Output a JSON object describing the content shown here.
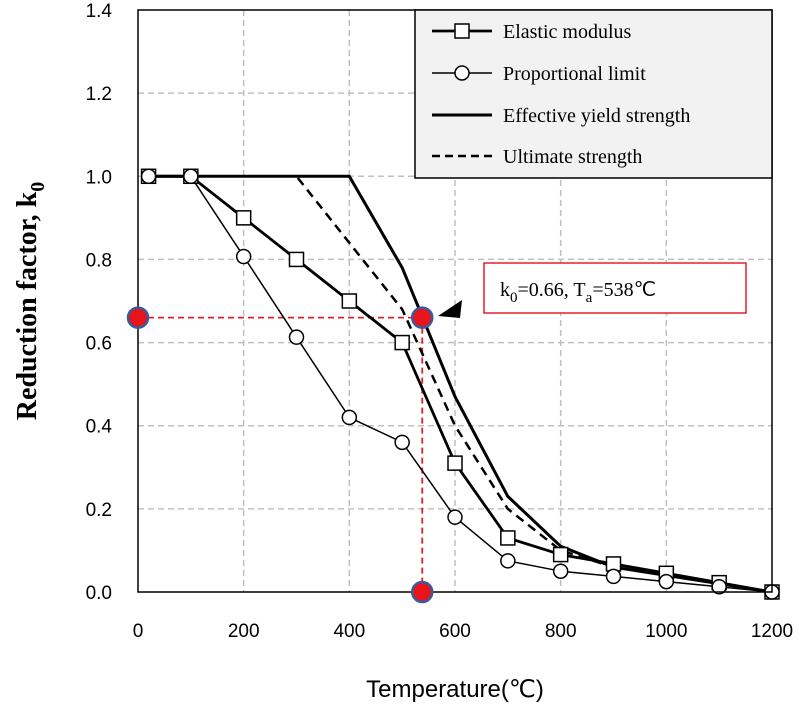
{
  "chart_data": {
    "type": "line",
    "xlabel": "Temperature(℃)",
    "ylabel": {
      "main": "Reduction factor, k",
      "sub": "0"
    },
    "xlim": [
      0,
      1200
    ],
    "ylim": [
      0,
      1.4
    ],
    "xticks": [
      "0",
      "200",
      "400",
      "600",
      "800",
      "1000",
      "1200"
    ],
    "yticks": [
      "0.0",
      "0.2",
      "0.4",
      "0.6",
      "0.8",
      "1.0",
      "1.2",
      "1.4"
    ],
    "grid": true,
    "grid_style": "dashed",
    "legend_position": "top-right",
    "series": [
      {
        "name": "Elastic modulus",
        "marker": "square",
        "stroke": "solid",
        "points": [
          [
            20,
            1.0
          ],
          [
            100,
            1.0
          ],
          [
            200,
            0.9
          ],
          [
            300,
            0.8
          ],
          [
            400,
            0.7
          ],
          [
            500,
            0.6
          ],
          [
            600,
            0.31
          ],
          [
            700,
            0.13
          ],
          [
            800,
            0.09
          ],
          [
            900,
            0.0675
          ],
          [
            1000,
            0.045
          ],
          [
            1100,
            0.0225
          ],
          [
            1200,
            0.0
          ]
        ]
      },
      {
        "name": "Proportional limit",
        "marker": "circle",
        "stroke": "solid",
        "points": [
          [
            20,
            1.0
          ],
          [
            100,
            1.0
          ],
          [
            200,
            0.807
          ],
          [
            300,
            0.613
          ],
          [
            400,
            0.42
          ],
          [
            500,
            0.36
          ],
          [
            600,
            0.18
          ],
          [
            700,
            0.075
          ],
          [
            800,
            0.05
          ],
          [
            900,
            0.0375
          ],
          [
            1000,
            0.025
          ],
          [
            1100,
            0.0125
          ],
          [
            1200,
            0.0
          ]
        ]
      },
      {
        "name": "Effective yield strength",
        "marker": "none",
        "stroke": "solid-thick",
        "points": [
          [
            20,
            1.0
          ],
          [
            100,
            1.0
          ],
          [
            200,
            1.0
          ],
          [
            300,
            1.0
          ],
          [
            400,
            1.0
          ],
          [
            500,
            0.78
          ],
          [
            600,
            0.47
          ],
          [
            700,
            0.23
          ],
          [
            800,
            0.11
          ],
          [
            900,
            0.06
          ],
          [
            1000,
            0.04
          ],
          [
            1100,
            0.02
          ],
          [
            1200,
            0.0
          ]
        ]
      },
      {
        "name": "Ultimate strength",
        "marker": "none",
        "stroke": "dashed",
        "points": [
          [
            20,
            1.0
          ],
          [
            100,
            1.0
          ],
          [
            200,
            1.0
          ],
          [
            300,
            1.0
          ],
          [
            400,
            0.84
          ],
          [
            500,
            0.68
          ],
          [
            600,
            0.4
          ],
          [
            700,
            0.2
          ],
          [
            800,
            0.1
          ],
          [
            900,
            0.06
          ],
          [
            1000,
            0.04
          ],
          [
            1100,
            0.02
          ],
          [
            1200,
            0.0
          ]
        ]
      }
    ],
    "annotation": {
      "x": 538,
      "y": 0.66,
      "label_parts": [
        {
          "text": "k",
          "style": "normal"
        },
        {
          "text": "0",
          "style": "sub"
        },
        {
          "text": "=0.66, T",
          "style": "normal"
        },
        {
          "text": "a",
          "style": "sub"
        },
        {
          "text": "=538℃",
          "style": "normal"
        }
      ],
      "box_color": "#e0202a",
      "marker_color": "#e8141c"
    }
  }
}
